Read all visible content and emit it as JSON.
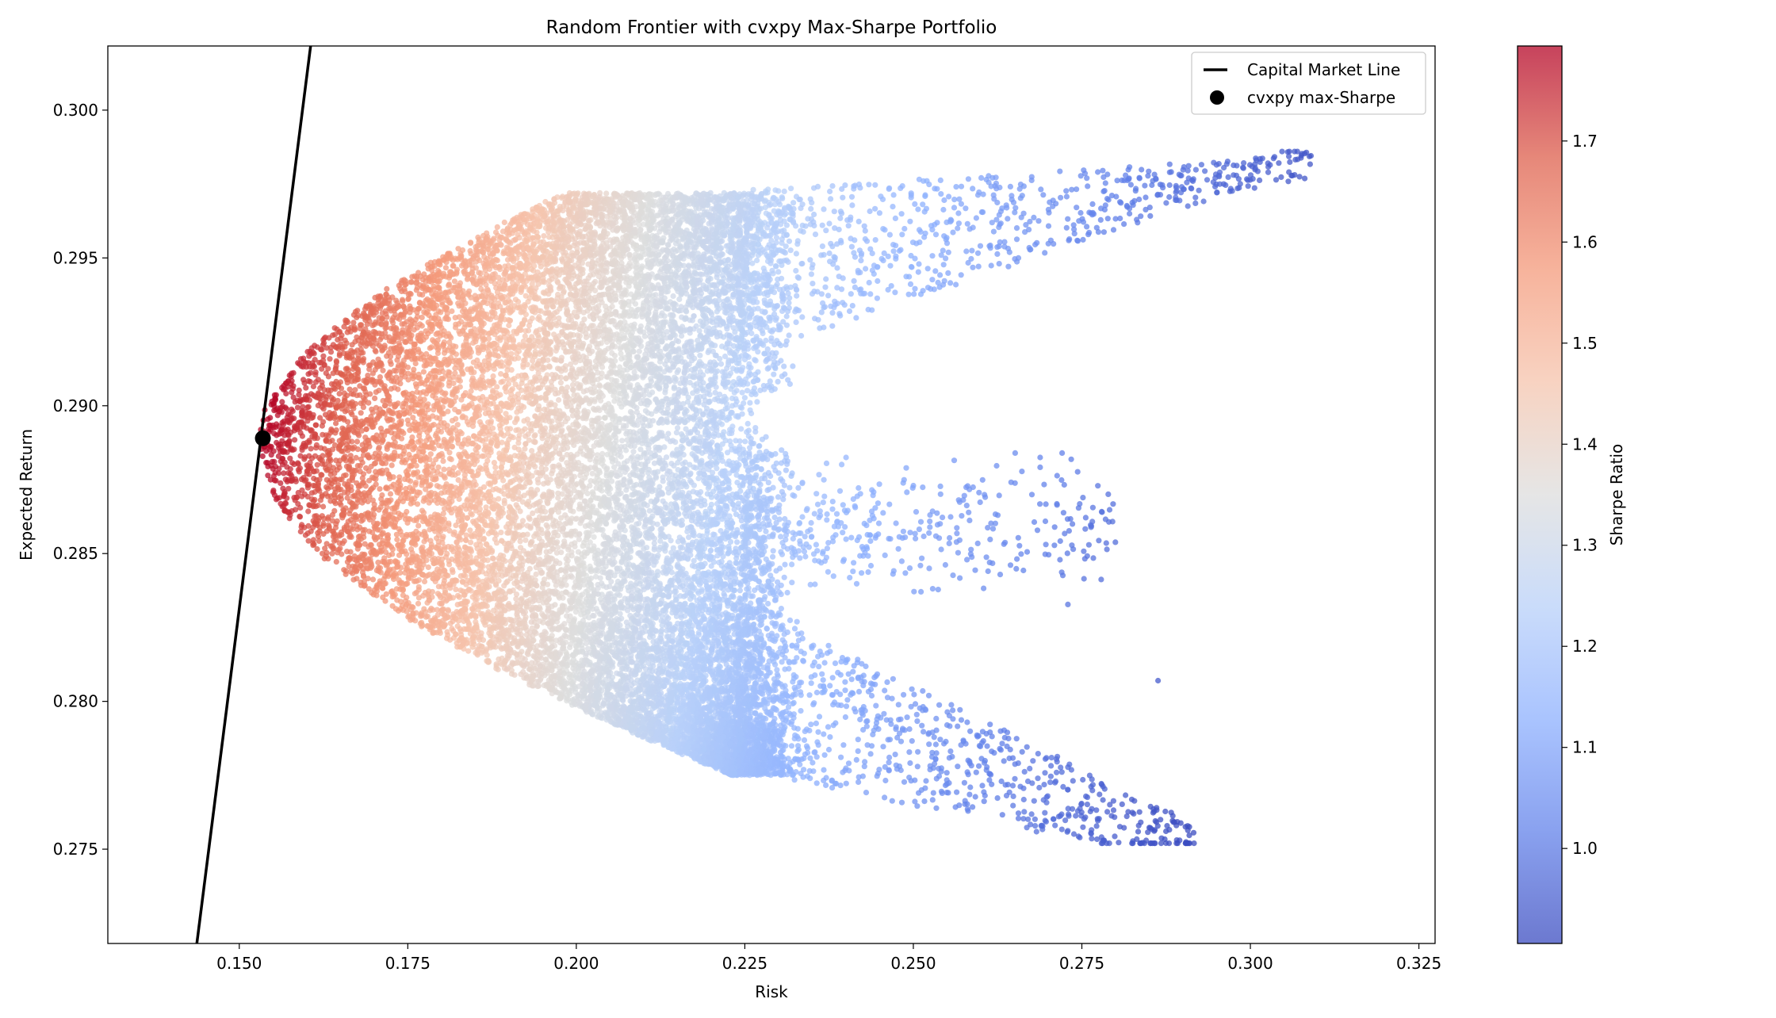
{
  "chart_data": {
    "type": "scatter",
    "title": "Random Frontier with cvxpy Max-Sharpe Portfolio",
    "xlabel": "Risk",
    "ylabel": "Expected Return",
    "xlim": [
      0.1305,
      0.3274
    ],
    "ylim": [
      0.27181,
      0.30217
    ],
    "xticks": [
      "0.150",
      "0.175",
      "0.200",
      "0.225",
      "0.250",
      "0.275",
      "0.300",
      "0.325"
    ],
    "yticks": [
      "0.275",
      "0.280",
      "0.285",
      "0.290",
      "0.295",
      "0.300"
    ],
    "grid": false,
    "legend": {
      "placement": "top-right",
      "entries": [
        {
          "label": "Capital Market Line",
          "marker": "line",
          "color": "#000000"
        },
        {
          "label": "cvxpy max-Sharpe",
          "marker": "dot",
          "color": "#000000"
        }
      ]
    },
    "colorbar": {
      "label": "Sharpe Ratio",
      "colormap": "coolwarm",
      "range": [
        0.906,
        1.794
      ],
      "ticks": [
        "1.0",
        "1.1",
        "1.2",
        "1.3",
        "1.4",
        "1.5",
        "1.6",
        "1.7"
      ]
    },
    "capital_market_line": {
      "points": [
        [
          0.1437,
          0.2718
        ],
        [
          0.1606,
          0.3022
        ]
      ],
      "slope": 1.8,
      "intercept": 0.0126
    },
    "max_sharpe_portfolio": {
      "risk": 0.1535,
      "return": 0.2889,
      "sharpe": 1.8
    },
    "random_portfolios": {
      "color_by": "sharpe ratio",
      "frontier_boundary": [
        [
          0.223,
          0.2775
        ],
        [
          0.2075,
          0.279
        ],
        [
          0.1889,
          0.281
        ],
        [
          0.1732,
          0.283
        ],
        [
          0.1614,
          0.285
        ],
        [
          0.1543,
          0.287
        ],
        [
          0.1525,
          0.2886
        ],
        [
          0.1539,
          0.29
        ],
        [
          0.1605,
          0.292
        ],
        [
          0.1718,
          0.294
        ],
        [
          0.1872,
          0.296
        ],
        [
          0.1979,
          0.2972
        ]
      ],
      "extreme_points": [
        [
          0.3047,
          0.2986
        ],
        [
          0.2895,
          0.2753
        ],
        [
          0.2863,
          0.2807
        ],
        [
          0.278,
          0.2864
        ]
      ]
    }
  }
}
